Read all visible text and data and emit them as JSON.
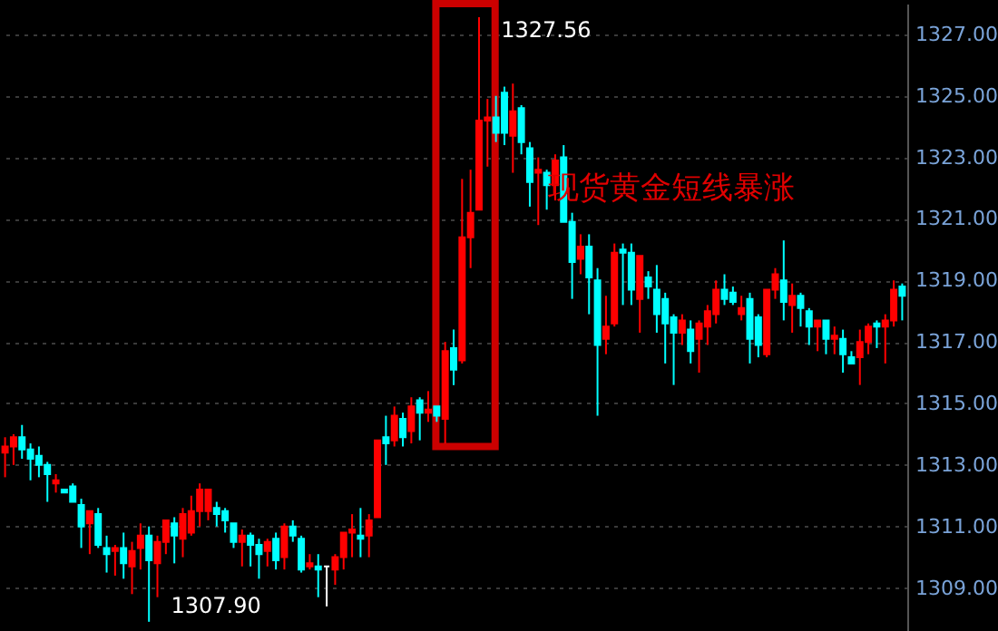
{
  "chart_data": {
    "type": "candlestick",
    "categories": [
      null,
      null,
      null,
      null,
      null,
      null,
      null,
      null,
      null,
      null,
      null,
      null,
      null,
      null,
      null,
      null,
      null,
      null,
      null,
      null,
      null,
      null,
      null,
      null,
      null,
      null,
      null,
      null,
      null,
      null,
      null,
      null,
      null,
      null,
      null,
      null,
      null,
      null,
      null,
      null,
      null,
      null,
      null,
      null,
      null,
      null,
      null,
      null,
      null,
      null,
      null,
      null,
      null,
      null,
      null,
      null,
      null,
      null,
      null,
      null,
      null,
      null,
      null,
      null,
      null,
      null,
      null,
      null,
      null,
      null,
      null,
      null,
      null,
      null,
      null,
      null,
      null,
      null,
      null,
      null,
      null,
      null,
      null,
      null,
      null,
      null,
      null,
      null,
      null,
      null,
      null,
      null,
      null,
      null,
      null,
      null,
      null,
      null,
      null,
      null,
      null,
      null,
      null,
      null,
      null,
      null,
      null
    ],
    "ohlc": [
      [
        1313.4,
        1313.9,
        1312.6,
        1313.6
      ],
      [
        1313.6,
        1314.0,
        1313.0,
        1313.9
      ],
      [
        1313.9,
        1314.3,
        1313.2,
        1313.5
      ],
      [
        1313.5,
        1313.7,
        1312.5,
        1313.2
      ],
      [
        1313.3,
        1313.6,
        1312.6,
        1313.0
      ],
      [
        1313.0,
        1313.1,
        1311.8,
        1312.7
      ],
      [
        1312.4,
        1312.7,
        1312.1,
        1312.5
      ],
      [
        1312.2,
        1312.2,
        1312.1,
        1312.1
      ],
      [
        1312.3,
        1312.4,
        1311.8,
        1311.8
      ],
      [
        1311.7,
        1311.9,
        1310.3,
        1311.0
      ],
      [
        1311.1,
        1311.5,
        1310.1,
        1311.5
      ],
      [
        1311.4,
        1311.6,
        1310.3,
        1310.4
      ],
      [
        1310.3,
        1310.7,
        1309.5,
        1310.1
      ],
      [
        1310.2,
        1310.4,
        1309.4,
        1310.3
      ],
      [
        1310.3,
        1310.8,
        1309.3,
        1309.8
      ],
      [
        1309.7,
        1310.5,
        1308.8,
        1310.2
      ],
      [
        1310.3,
        1311.1,
        1309.6,
        1310.7
      ],
      [
        1310.7,
        1311.0,
        1307.9,
        1309.9
      ],
      [
        1309.8,
        1310.7,
        1308.7,
        1310.5
      ],
      [
        1310.5,
        1311.2,
        1310.1,
        1311.2
      ],
      [
        1311.1,
        1311.3,
        1309.8,
        1310.7
      ],
      [
        1310.6,
        1311.6,
        1310.0,
        1311.4
      ],
      [
        1310.8,
        1312.0,
        1310.7,
        1311.5
      ],
      [
        1311.5,
        1312.4,
        1311.0,
        1312.2
      ],
      [
        1311.5,
        1312.2,
        1311.2,
        1312.2
      ],
      [
        1311.6,
        1311.8,
        1311.0,
        1311.4
      ],
      [
        1311.5,
        1311.6,
        1310.8,
        1311.2
      ],
      [
        1311.1,
        1311.1,
        1310.3,
        1310.5
      ],
      [
        1310.5,
        1310.9,
        1309.7,
        1310.7
      ],
      [
        1310.7,
        1310.8,
        1309.7,
        1310.4
      ],
      [
        1310.4,
        1310.6,
        1309.3,
        1310.1
      ],
      [
        1310.2,
        1310.6,
        1309.7,
        1310.5
      ],
      [
        1310.6,
        1310.8,
        1309.6,
        1309.9
      ],
      [
        1310.0,
        1311.1,
        1309.6,
        1311.0
      ],
      [
        1311.0,
        1311.2,
        1310.5,
        1310.7
      ],
      [
        1310.6,
        1310.7,
        1309.5,
        1309.6
      ],
      [
        1309.7,
        1310.1,
        1309.6,
        1309.8
      ],
      [
        1309.7,
        1310.1,
        1308.7,
        1309.6
      ],
      [
        1309.7,
        1309.7,
        1308.4,
        1309.7
      ],
      [
        1309.6,
        1310.1,
        1309.1,
        1310.0
      ],
      [
        1310.0,
        1310.8,
        1309.6,
        1310.8
      ],
      [
        1310.8,
        1311.4,
        1310.0,
        1310.9
      ],
      [
        1310.7,
        1311.6,
        1310.0,
        1310.6
      ],
      [
        1310.7,
        1311.4,
        1310.0,
        1311.2
      ],
      [
        1311.3,
        1313.8,
        1311.3,
        1313.8
      ],
      [
        1313.9,
        1314.6,
        1313.0,
        1313.7
      ],
      [
        1313.8,
        1314.9,
        1313.6,
        1314.6
      ],
      [
        1314.5,
        1314.7,
        1313.6,
        1313.9
      ],
      [
        1314.1,
        1315.2,
        1313.7,
        1314.9
      ],
      [
        1315.1,
        1315.2,
        1313.8,
        1314.7
      ],
      [
        1314.7,
        1315.4,
        1314.4,
        1314.8
      ],
      [
        1314.9,
        1314.9,
        1314.4,
        1314.6
      ],
      [
        1314.5,
        1317.0,
        1313.7,
        1316.7
      ],
      [
        1316.8,
        1317.4,
        1315.6,
        1316.1
      ],
      [
        1316.4,
        1322.3,
        1316.3,
        1320.4
      ],
      [
        1320.4,
        1322.6,
        1319.4,
        1321.2
      ],
      [
        1321.3,
        1327.56,
        1321.3,
        1324.2
      ],
      [
        1324.2,
        1324.9,
        1322.7,
        1324.3
      ],
      [
        1324.3,
        1325.0,
        1323.5,
        1323.8
      ],
      [
        1325.1,
        1325.3,
        1323.4,
        1323.8
      ],
      [
        1323.7,
        1325.4,
        1322.5,
        1324.5
      ],
      [
        1324.6,
        1324.7,
        1323.1,
        1323.5
      ],
      [
        1323.3,
        1323.5,
        1321.4,
        1322.2
      ],
      [
        1322.5,
        1323.0,
        1320.8,
        1322.6
      ],
      [
        1322.5,
        1322.6,
        1321.3,
        1322.1
      ],
      [
        1322.1,
        1323.1,
        1321.6,
        1322.9
      ],
      [
        1323.0,
        1323.4,
        1320.9,
        1320.9
      ],
      [
        1320.9,
        1321.2,
        1318.4,
        1319.6
      ],
      [
        1319.7,
        1320.5,
        1319.2,
        1320.1
      ],
      [
        1320.1,
        1320.5,
        1317.9,
        1319.1
      ],
      [
        1319.0,
        1319.4,
        1314.6,
        1316.9
      ],
      [
        1317.1,
        1318.5,
        1316.6,
        1317.5
      ],
      [
        1317.6,
        1320.2,
        1317.5,
        1319.9
      ],
      [
        1320.0,
        1320.2,
        1318.2,
        1319.9
      ],
      [
        1319.9,
        1320.2,
        1318.2,
        1318.7
      ],
      [
        1318.4,
        1319.8,
        1317.3,
        1319.8
      ],
      [
        1319.1,
        1319.3,
        1318.4,
        1318.8
      ],
      [
        1318.7,
        1319.5,
        1317.3,
        1317.9
      ],
      [
        1318.4,
        1318.6,
        1316.3,
        1317.6
      ],
      [
        1317.8,
        1317.9,
        1315.6,
        1317.3
      ],
      [
        1317.3,
        1317.9,
        1316.9,
        1317.7
      ],
      [
        1317.4,
        1317.7,
        1316.3,
        1316.7
      ],
      [
        1317.1,
        1317.7,
        1316.0,
        1317.6
      ],
      [
        1317.5,
        1318.2,
        1316.9,
        1318.0
      ],
      [
        1317.9,
        1319.0,
        1317.6,
        1318.7
      ],
      [
        1318.7,
        1319.2,
        1318.2,
        1318.4
      ],
      [
        1318.6,
        1318.8,
        1318.2,
        1318.3
      ],
      [
        1317.9,
        1318.5,
        1317.7,
        1318.1
      ],
      [
        1318.4,
        1318.6,
        1316.3,
        1317.1
      ],
      [
        1317.8,
        1317.9,
        1316.5,
        1316.9
      ],
      [
        1316.6,
        1318.7,
        1316.5,
        1318.7
      ],
      [
        1318.7,
        1319.4,
        1318.4,
        1319.2
      ],
      [
        1319.0,
        1320.3,
        1317.7,
        1318.3
      ],
      [
        1318.2,
        1318.9,
        1317.3,
        1318.5
      ],
      [
        1318.5,
        1318.6,
        1317.5,
        1318.1
      ],
      [
        1318.0,
        1318.1,
        1316.9,
        1317.5
      ],
      [
        1317.5,
        1317.7,
        1316.7,
        1317.7
      ],
      [
        1317.7,
        1317.7,
        1316.6,
        1317.1
      ],
      [
        1317.1,
        1317.5,
        1316.6,
        1317.2
      ],
      [
        1317.1,
        1317.4,
        1316.0,
        1316.6
      ],
      [
        1316.5,
        1316.7,
        1316.3,
        1316.3
      ],
      [
        1316.5,
        1317.4,
        1315.6,
        1317.0
      ],
      [
        1317.0,
        1317.6,
        1316.6,
        1317.5
      ],
      [
        1317.6,
        1317.7,
        1316.8,
        1317.5
      ],
      [
        1317.5,
        1317.9,
        1316.3,
        1317.7
      ],
      [
        1317.7,
        1319.0,
        1317.5,
        1318.7
      ],
      [
        1318.8,
        1318.9,
        1317.7,
        1318.5
      ]
    ],
    "colors": [
      "#ff0000",
      "#ff0000",
      "#00ffff",
      "#00ffff",
      "#00ffff",
      "#00ffff",
      "#ff0000",
      "#00ffff",
      "#00ffff",
      "#00ffff",
      "#ff0000",
      "#00ffff",
      "#00ffff",
      "#ff0000",
      "#00ffff",
      "#ff0000",
      "#ff0000",
      "#00ffff",
      "#ff0000",
      "#ff0000",
      "#00ffff",
      "#ff0000",
      "#ff0000",
      "#ff0000",
      "#ff0000",
      "#00ffff",
      "#00ffff",
      "#00ffff",
      "#ff0000",
      "#00ffff",
      "#00ffff",
      "#ff0000",
      "#00ffff",
      "#ff0000",
      "#00ffff",
      "#00ffff",
      "#ff0000",
      "#00ffff",
      "#ffffff",
      "#ff0000",
      "#ff0000",
      "#ff0000",
      "#00ffff",
      "#ff0000",
      "#ff0000",
      "#00ffff",
      "#ff0000",
      "#00ffff",
      "#ff0000",
      "#00ffff",
      "#ff0000",
      "#00ffff",
      "#ff0000",
      "#00ffff",
      "#ff0000",
      "#ff0000",
      "#ff0000",
      "#ff0000",
      "#00ffff",
      "#00ffff",
      "#ff0000",
      "#00ffff",
      "#00ffff",
      "#ff0000",
      "#00ffff",
      "#ff0000",
      "#00ffff",
      "#00ffff",
      "#ff0000",
      "#00ffff",
      "#00ffff",
      "#ff0000",
      "#ff0000",
      "#00ffff",
      "#00ffff",
      "#ff0000",
      "#00ffff",
      "#00ffff",
      "#00ffff",
      "#00ffff",
      "#ff0000",
      "#00ffff",
      "#ff0000",
      "#ff0000",
      "#ff0000",
      "#00ffff",
      "#00ffff",
      "#ff0000",
      "#00ffff",
      "#00ffff",
      "#ff0000",
      "#ff0000",
      "#00ffff",
      "#ff0000",
      "#00ffff",
      "#00ffff",
      "#ff0000",
      "#00ffff",
      "#ff0000",
      "#00ffff",
      "#00ffff",
      "#ff0000",
      "#ff0000",
      "#00ffff",
      "#ff0000",
      "#ff0000",
      "#00ffff"
    ],
    "ylim": [
      1307.6,
      1328.0
    ],
    "yticks": [
      {
        "value": 1309,
        "label": "1309.00"
      },
      {
        "value": 1311,
        "label": "1311.00"
      },
      {
        "value": 1313,
        "label": "1313.00"
      },
      {
        "value": 1315,
        "label": "1315.00"
      },
      {
        "value": 1317,
        "label": "1317.00"
      },
      {
        "value": 1319,
        "label": "1319.00"
      },
      {
        "value": 1321,
        "label": "1321.00"
      },
      {
        "value": 1323,
        "label": "1323.00"
      },
      {
        "value": 1325,
        "label": "1325.00"
      },
      {
        "value": 1327,
        "label": "1327.00"
      }
    ],
    "grid": "y",
    "tick_labels": "y",
    "annotations": [
      "1327.56",
      "1307.90",
      "现货黄金短线暴涨"
    ]
  }
}
